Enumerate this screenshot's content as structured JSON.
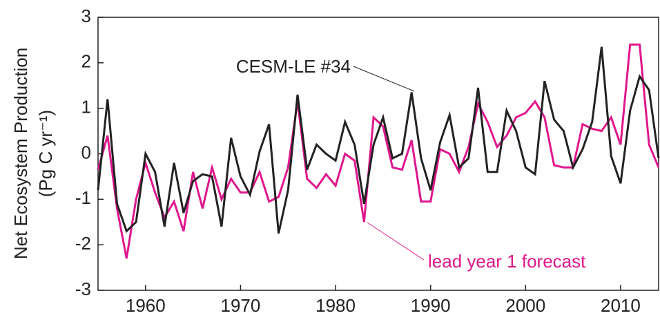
{
  "chart_data": {
    "type": "line",
    "ylabel": [
      "Net Ecosystem Production",
      "(Pg C yr⁻¹)"
    ],
    "x": [
      1955,
      1956,
      1957,
      1958,
      1959,
      1960,
      1961,
      1962,
      1963,
      1964,
      1965,
      1966,
      1967,
      1968,
      1969,
      1970,
      1971,
      1972,
      1973,
      1974,
      1975,
      1976,
      1977,
      1978,
      1979,
      1980,
      1981,
      1982,
      1983,
      1984,
      1985,
      1986,
      1987,
      1988,
      1989,
      1990,
      1991,
      1992,
      1993,
      1994,
      1995,
      1996,
      1997,
      1998,
      1999,
      2000,
      2001,
      2002,
      2003,
      2004,
      2005,
      2006,
      2007,
      2008,
      2009,
      2010,
      2011,
      2012,
      2013,
      2014
    ],
    "series": [
      {
        "name": "lead year 1 forecast",
        "color": "#e0168c",
        "values": [
          -0.35,
          0.4,
          -1.2,
          -2.3,
          -1.0,
          -0.2,
          -0.85,
          -1.4,
          -1.05,
          -1.7,
          -0.4,
          -1.2,
          -0.3,
          -1.0,
          -0.55,
          -0.85,
          -0.85,
          -0.4,
          -1.05,
          -0.95,
          -0.3,
          1.15,
          -0.55,
          -0.75,
          -0.45,
          -0.7,
          0.0,
          -0.15,
          -1.5,
          0.8,
          0.6,
          -0.3,
          -0.35,
          0.3,
          -1.05,
          -1.05,
          0.1,
          0.0,
          -0.4,
          0.15,
          1.1,
          0.7,
          0.15,
          0.4,
          0.8,
          0.9,
          1.15,
          0.8,
          -0.25,
          -0.3,
          -0.3,
          0.65,
          0.55,
          0.5,
          0.8,
          0.2,
          2.4,
          2.4,
          0.2,
          -0.3
        ]
      },
      {
        "name": "CESM-LE #34",
        "color": "#222222",
        "values": [
          -0.8,
          1.2,
          -1.1,
          -1.7,
          -1.5,
          0.0,
          -0.4,
          -1.6,
          -0.2,
          -1.3,
          -0.6,
          -0.45,
          -0.5,
          -1.6,
          0.35,
          -0.5,
          -0.9,
          0.05,
          0.65,
          -1.75,
          -0.8,
          1.3,
          -0.35,
          0.2,
          0.0,
          -0.15,
          0.7,
          0.2,
          -1.1,
          0.2,
          0.8,
          -0.1,
          0.0,
          1.35,
          -0.1,
          -0.8,
          0.25,
          0.85,
          -0.3,
          -0.1,
          1.45,
          -0.4,
          -0.4,
          0.95,
          0.5,
          -0.3,
          -0.45,
          1.6,
          0.75,
          0.5,
          -0.3,
          0.1,
          0.7,
          2.35,
          -0.05,
          -0.65,
          0.95,
          1.7,
          1.4,
          -0.1
        ]
      }
    ],
    "xlim": [
      1955,
      2014
    ],
    "xticks": [
      1960,
      1970,
      1980,
      1990,
      2000,
      2010
    ],
    "ylim": [
      -3,
      3
    ],
    "yticks": [
      -3,
      -2,
      -1,
      0,
      1,
      2,
      3
    ]
  }
}
